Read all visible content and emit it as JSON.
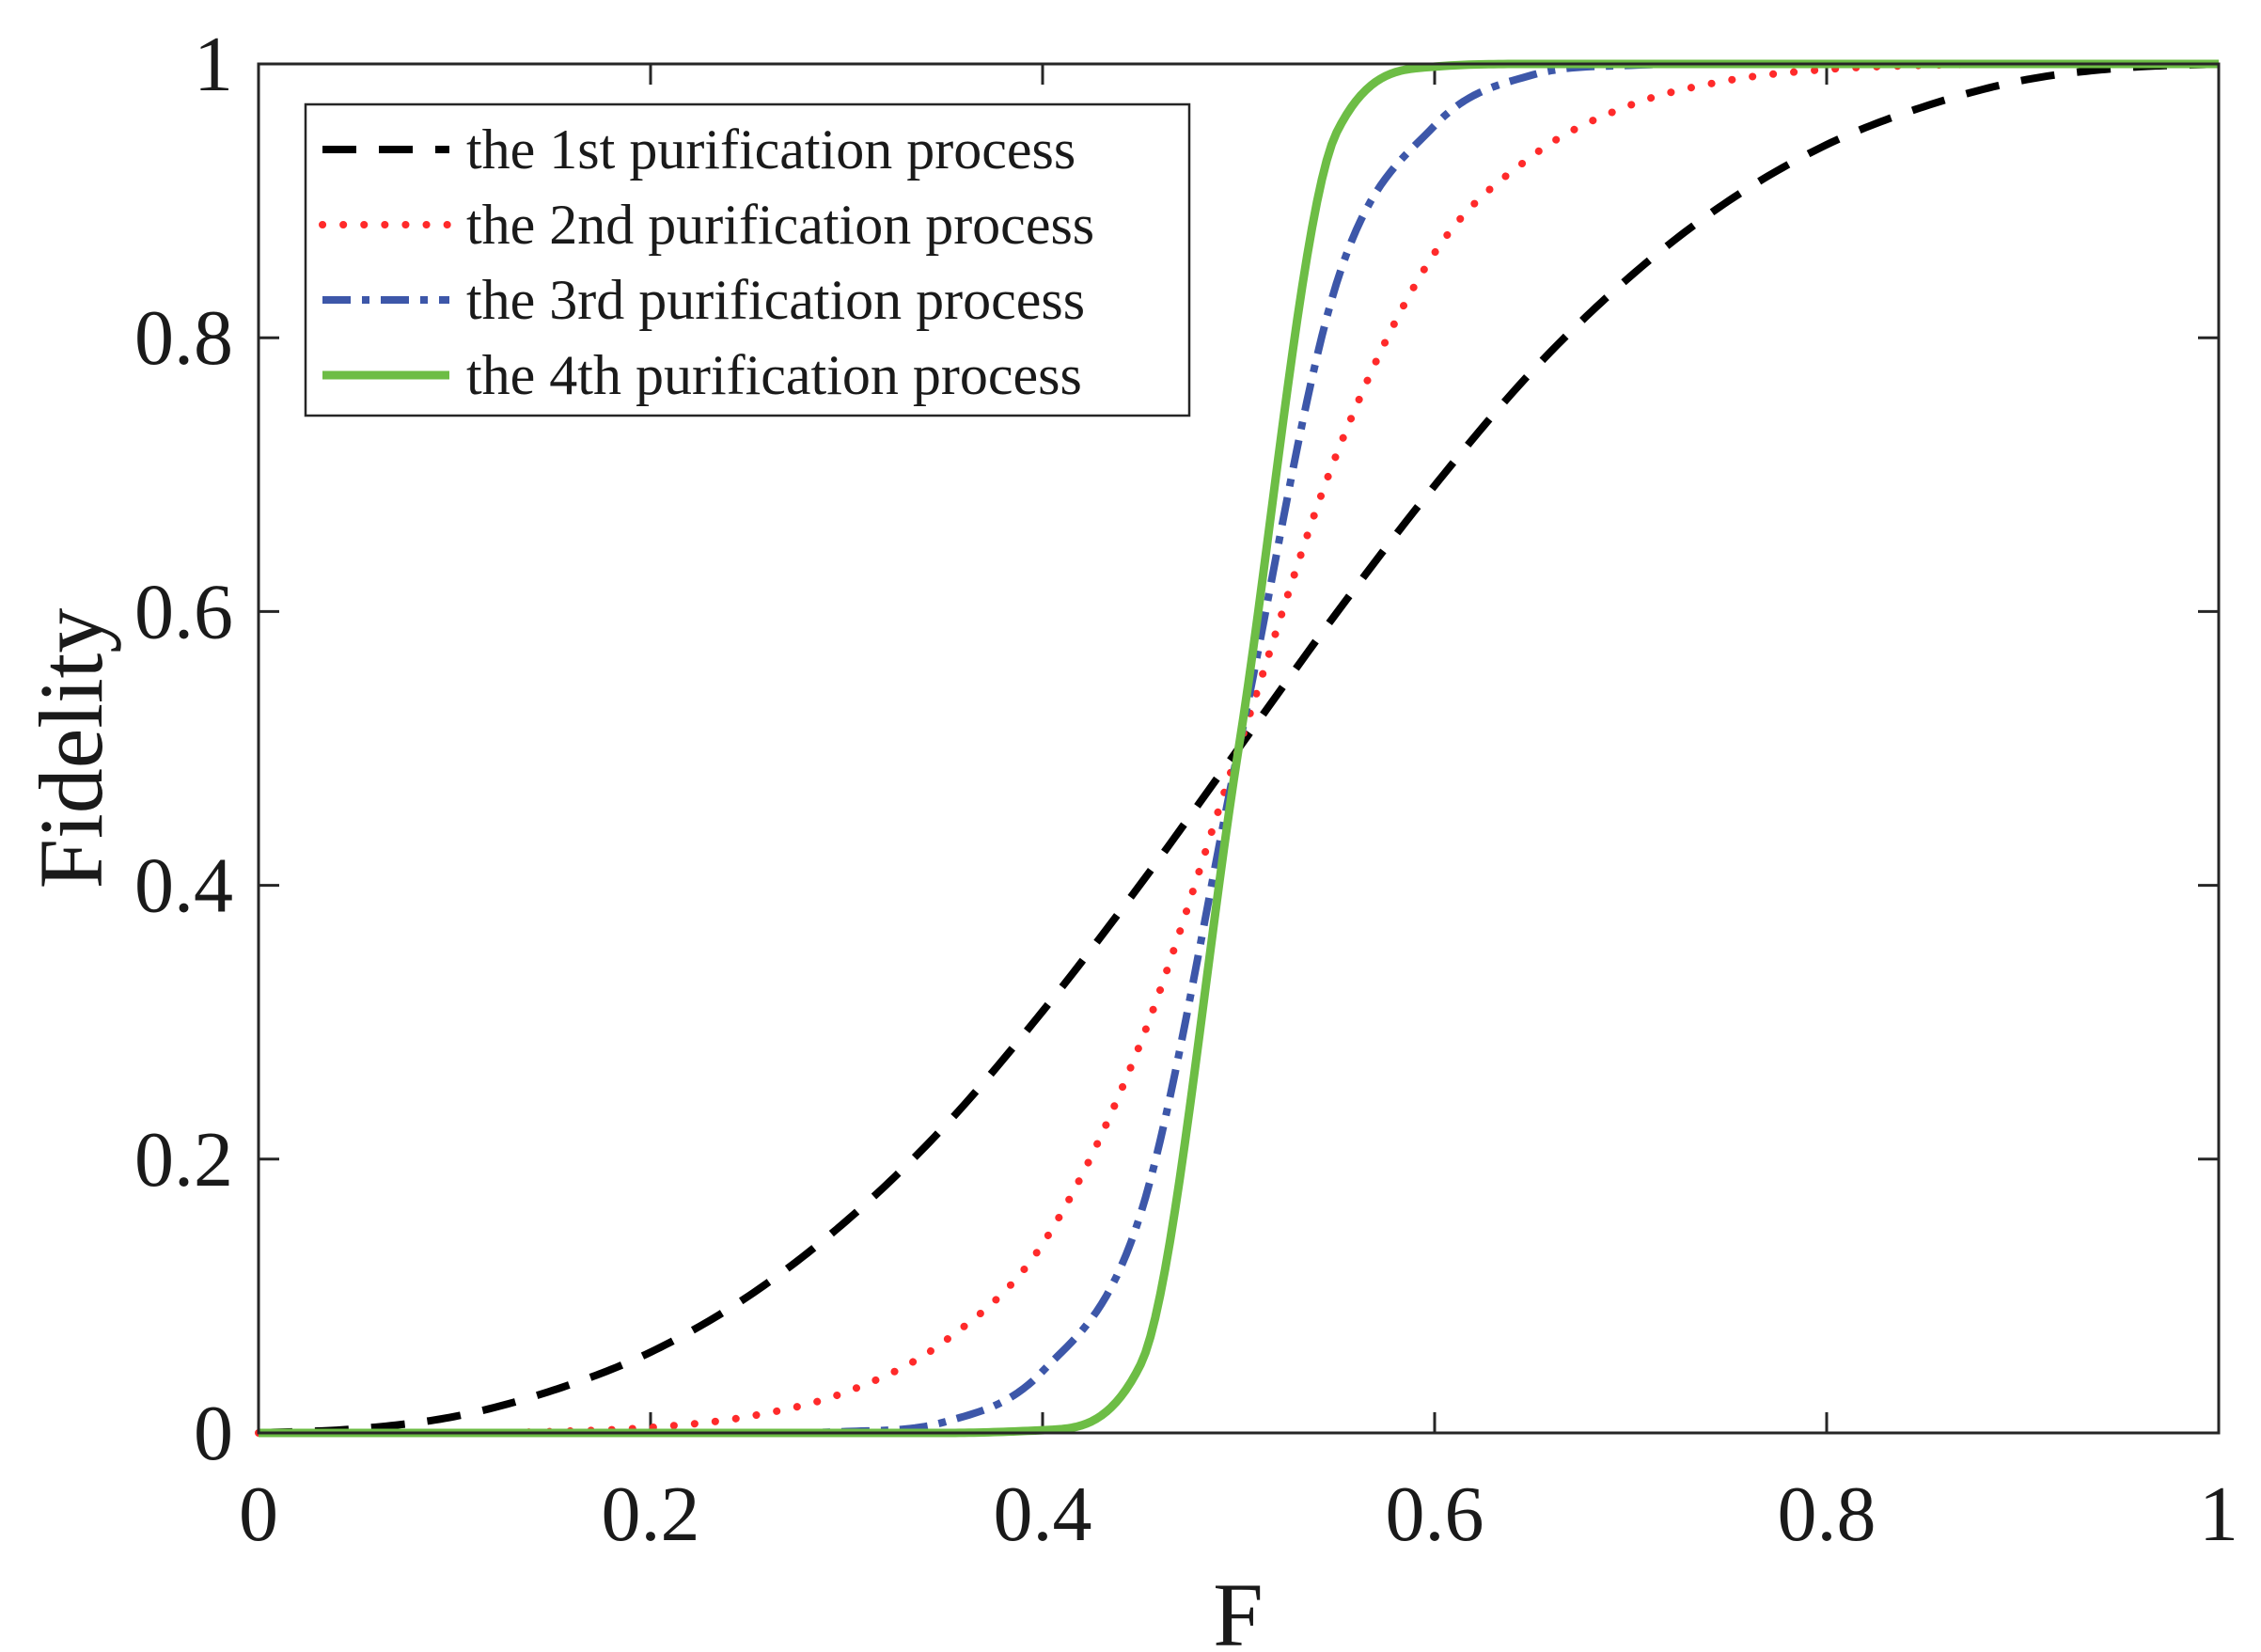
{
  "chart_data": {
    "type": "line",
    "title": "",
    "xlabel": "F",
    "ylabel": "Fidelity",
    "xlim": [
      0,
      1
    ],
    "ylim": [
      0,
      1
    ],
    "xticks": [
      {
        "value": 0,
        "label": "0"
      },
      {
        "value": 0.2,
        "label": "0.2"
      },
      {
        "value": 0.4,
        "label": "0.4"
      },
      {
        "value": 0.6,
        "label": "0.6"
      },
      {
        "value": 0.8,
        "label": "0.8"
      },
      {
        "value": 1,
        "label": "1"
      }
    ],
    "yticks": [
      {
        "value": 0,
        "label": "0"
      },
      {
        "value": 0.2,
        "label": "0.2"
      },
      {
        "value": 0.4,
        "label": "0.4"
      },
      {
        "value": 0.6,
        "label": "0.6"
      },
      {
        "value": 0.8,
        "label": "0.8"
      },
      {
        "value": 1,
        "label": "1"
      }
    ],
    "grid": false,
    "legend_position": "top-left",
    "x": [
      0,
      0.05,
      0.1,
      0.15,
      0.2,
      0.25,
      0.3,
      0.35,
      0.4,
      0.45,
      0.5,
      0.55,
      0.6,
      0.65,
      0.7,
      0.75,
      0.8,
      0.85,
      0.9,
      0.95,
      1
    ],
    "series": [
      {
        "name": "the 1st purification process",
        "color": "#000000",
        "style": "dashed",
        "values": [
          0,
          0.003,
          0.012,
          0.031,
          0.059,
          0.1,
          0.155,
          0.224,
          0.308,
          0.401,
          0.5,
          0.599,
          0.692,
          0.776,
          0.845,
          0.9,
          0.941,
          0.969,
          0.988,
          0.997,
          1
        ]
      },
      {
        "name": "the 2nd purification process",
        "color": "#ff2a2a",
        "style": "dotted",
        "values": [
          0,
          0,
          0,
          0.001,
          0.004,
          0.012,
          0.03,
          0.067,
          0.138,
          0.285,
          0.5,
          0.715,
          0.862,
          0.933,
          0.97,
          0.988,
          0.996,
          0.999,
          1,
          1,
          1
        ]
      },
      {
        "name": "the 3rd purification process",
        "color": "#3d57a9",
        "style": "dashdot",
        "values": [
          0,
          0,
          0,
          0,
          0,
          0,
          0.001,
          0.008,
          0.045,
          0.16,
          0.5,
          0.84,
          0.955,
          0.992,
          0.999,
          1,
          1,
          1,
          1,
          1,
          1
        ]
      },
      {
        "name": "the 4th purification process",
        "color": "#6dbd45",
        "style": "solid",
        "values": [
          0,
          0,
          0,
          0,
          0,
          0,
          0,
          0,
          0.002,
          0.05,
          0.5,
          0.95,
          0.998,
          1,
          1,
          1,
          1,
          1,
          1,
          1,
          1
        ]
      }
    ]
  }
}
